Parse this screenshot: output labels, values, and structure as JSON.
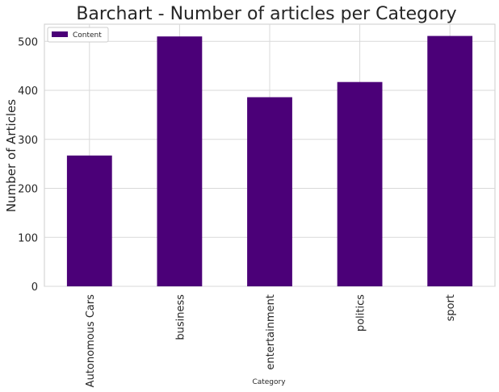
{
  "chart_data": {
    "type": "bar",
    "title": "Barchart - Number of articles per Category",
    "xlabel": "Category",
    "ylabel": "Number of Articles",
    "categories": [
      "Autonomous Cars",
      "business",
      "entertainment",
      "politics",
      "sport"
    ],
    "series": [
      {
        "name": "Content",
        "values": [
          267,
          510,
          386,
          417,
          511
        ],
        "color": "#4b0078"
      }
    ],
    "ylim": [
      0,
      535
    ],
    "yticks": [
      0,
      100,
      200,
      300,
      400,
      500
    ],
    "grid": true,
    "legend": "top-left",
    "colors": {
      "grid": "#d9d9d9",
      "axes_edge": "#cccccc",
      "text": "#262626"
    }
  }
}
